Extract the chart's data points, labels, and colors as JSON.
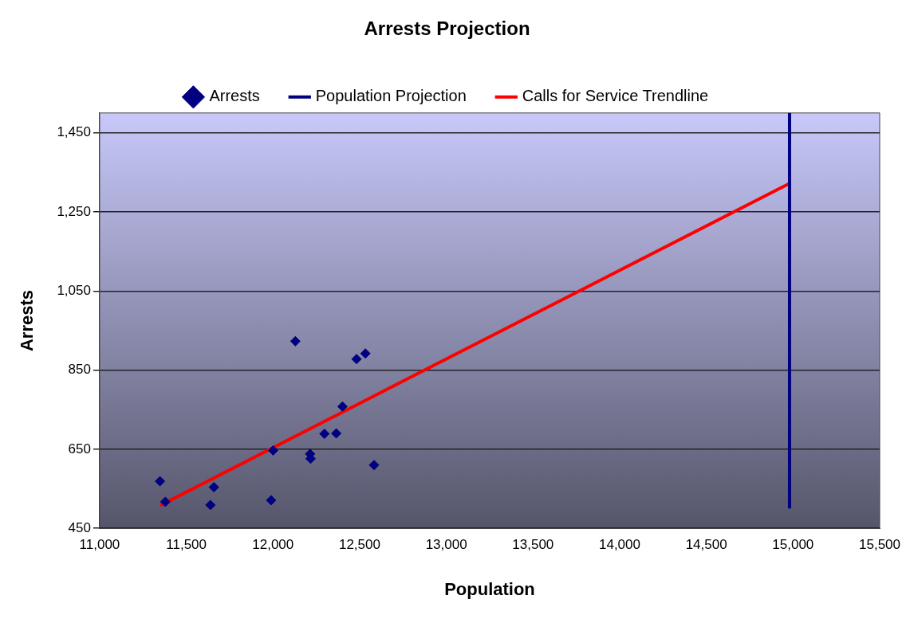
{
  "chart_data": {
    "type": "scatter",
    "title": "Arrests Projection",
    "xlabel": "Population",
    "ylabel": "Arrests",
    "xlim": [
      11000,
      15500
    ],
    "xticks": [
      {
        "value": 11000,
        "label": "11,000"
      },
      {
        "value": 11500,
        "label": "11,500"
      },
      {
        "value": 12000,
        "label": "12,000"
      },
      {
        "value": 12500,
        "label": "12,500"
      },
      {
        "value": 13000,
        "label": "13,000"
      },
      {
        "value": 13500,
        "label": "13,500"
      },
      {
        "value": 14000,
        "label": "14,000"
      },
      {
        "value": 14500,
        "label": "14,500"
      },
      {
        "value": 15000,
        "label": "15,000"
      },
      {
        "value": 15500,
        "label": "15,500"
      }
    ],
    "ylim": [
      450,
      1500
    ],
    "yticks": [
      450,
      650,
      850,
      {
        "value": 1050,
        "label": "1,050"
      },
      {
        "value": 1250,
        "label": "1,250"
      },
      {
        "value": 1450,
        "label": "1,450"
      }
    ],
    "grid": "y",
    "legend": "top",
    "series": [
      {
        "name": "Arrests",
        "marker": "diamond",
        "color": "#000080",
        "x": [
          11348,
          11379,
          11659,
          11639,
          11989,
          12001,
          12129,
          12214,
          12217,
          12297,
          12365,
          12401,
          12482,
          12533,
          12583
        ],
        "values": [
          569,
          517,
          554,
          509,
          521,
          647,
          923,
          638,
          626,
          689,
          690,
          758,
          878,
          892,
          610
        ]
      },
      {
        "name": "Population Projection",
        "type": "line",
        "marker": "none",
        "color": "#000080",
        "x": [
          14980,
          14980
        ],
        "values": [
          500,
          1500
        ]
      },
      {
        "name": "Calls for Service Trendline",
        "type": "line",
        "marker": "none",
        "color": "#ff0000",
        "x": [
          11350,
          14980
        ],
        "values": [
          508,
          1322
        ]
      }
    ]
  }
}
